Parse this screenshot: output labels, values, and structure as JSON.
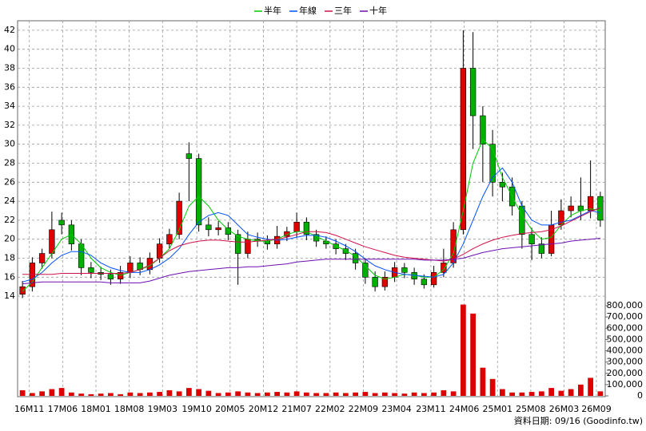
{
  "chart_data": {
    "type": "candlestick",
    "legend": "top",
    "grid": true,
    "source": "資料日期: 09/16  (Goodinfo.tw)",
    "x": [
      0.5,
      1.5,
      2.5,
      3.5,
      4.5,
      5.5,
      6.5,
      7.5,
      8.5,
      9.5,
      10.5,
      11.5,
      12.5,
      13.5,
      14.5,
      15.5,
      16.5,
      17.5,
      18.5,
      19.5,
      20.5,
      21.5,
      22.5,
      23.5,
      24.5,
      25.5,
      26.5,
      27.5,
      28.5,
      29.5,
      30.5,
      31.5,
      32.5,
      33.5,
      34.5,
      35.5,
      36.5,
      37.5,
      38.5,
      39.5,
      40.5,
      41.5,
      42.5,
      43.5,
      44.5,
      45.5,
      46.5,
      47.5,
      48.5,
      49.5,
      50.5,
      51.5,
      52.5,
      53.5,
      54.5,
      55.5,
      56.5,
      57.5,
      58.5,
      59.5
    ],
    "xlim": [
      0,
      60
    ],
    "xticks": [
      {
        "value": 1.2,
        "label": "16M11"
      },
      {
        "value": 4.6,
        "label": "17M06"
      },
      {
        "value": 8.0,
        "label": "18M01"
      },
      {
        "value": 11.4,
        "label": "18M08"
      },
      {
        "value": 14.8,
        "label": "19M03"
      },
      {
        "value": 18.3,
        "label": "19M10"
      },
      {
        "value": 21.7,
        "label": "20M05"
      },
      {
        "value": 25.1,
        "label": "20M12"
      },
      {
        "value": 28.5,
        "label": "21M07"
      },
      {
        "value": 31.9,
        "label": "22M02"
      },
      {
        "value": 35.3,
        "label": "22M09"
      },
      {
        "value": 38.7,
        "label": "23M04"
      },
      {
        "value": 42.2,
        "label": "23M11"
      },
      {
        "value": 45.6,
        "label": "24M06"
      },
      {
        "value": 49.0,
        "label": "25M01"
      },
      {
        "value": 52.4,
        "label": "25M08"
      },
      {
        "value": 55.8,
        "label": "26M03"
      },
      {
        "value": 59.1,
        "label": "26M09"
      }
    ],
    "ylim": [
      13,
      43
    ],
    "yticks": [
      14,
      16,
      18,
      20,
      22,
      24,
      26,
      28,
      30,
      32,
      34,
      36,
      38,
      40,
      42
    ],
    "up_color": "#e00000",
    "down_color": "#00b000",
    "open": [
      14.2,
      15.0,
      17.5,
      18.5,
      22.0,
      21.5,
      19.5,
      17.0,
      16.5,
      16.3,
      15.8,
      16.5,
      17.5,
      16.8,
      18.0,
      19.5,
      20.5,
      29.0,
      28.5,
      21.5,
      21.0,
      21.2,
      20.5,
      18.5,
      20.0,
      19.8,
      19.5,
      20.3,
      20.8,
      21.8,
      20.5,
      19.8,
      19.5,
      19.0,
      18.5,
      17.5,
      16.0,
      15.0,
      16.0,
      17.0,
      16.5,
      15.8,
      15.2,
      16.5,
      17.5,
      21.0,
      38.0,
      33.0,
      30.0,
      26.0,
      25.5,
      23.5,
      20.5,
      19.5,
      18.5,
      21.5,
      23.0,
      23.5,
      23.0,
      24.5
    ],
    "high": [
      15.6,
      18.1,
      19.0,
      22.9,
      22.8,
      22.0,
      20.0,
      17.6,
      17.1,
      16.8,
      17.2,
      18.2,
      18.1,
      18.6,
      20.1,
      21.1,
      24.9,
      30.2,
      29.0,
      22.3,
      21.9,
      21.8,
      21.0,
      20.8,
      20.7,
      20.4,
      21.4,
      21.3,
      22.8,
      22.3,
      21.0,
      20.3,
      20.0,
      19.5,
      19.0,
      18.0,
      16.6,
      16.6,
      17.6,
      17.5,
      17.0,
      16.3,
      17.2,
      19.0,
      21.8,
      42.0,
      41.8,
      34.0,
      31.5,
      27.0,
      26.5,
      24.0,
      21.2,
      20.2,
      23.0,
      24.2,
      24.5,
      26.5,
      28.3,
      25.0
    ],
    "low": [
      13.8,
      14.5,
      16.9,
      18.0,
      20.5,
      18.8,
      16.2,
      15.9,
      15.7,
      15.2,
      15.3,
      15.9,
      16.2,
      16.3,
      17.5,
      19.0,
      20.0,
      24.0,
      20.8,
      20.3,
      20.4,
      19.9,
      15.2,
      18.0,
      19.2,
      18.9,
      19.0,
      19.8,
      20.2,
      19.9,
      19.2,
      19.0,
      18.4,
      17.8,
      16.8,
      15.3,
      14.5,
      14.6,
      15.5,
      15.9,
      15.2,
      14.8,
      14.9,
      16.0,
      17.0,
      20.5,
      29.5,
      26.0,
      24.5,
      24.0,
      22.5,
      19.0,
      17.8,
      18.0,
      18.2,
      21.0,
      22.3,
      22.0,
      22.2,
      21.3
    ],
    "close": [
      15.0,
      17.5,
      18.5,
      21.0,
      21.5,
      19.5,
      17.0,
      16.5,
      16.3,
      15.8,
      16.5,
      17.5,
      16.8,
      18.0,
      19.5,
      20.5,
      24.0,
      28.5,
      21.5,
      21.0,
      21.2,
      20.5,
      18.5,
      20.0,
      19.8,
      19.5,
      20.3,
      20.8,
      21.8,
      20.5,
      19.8,
      19.5,
      19.0,
      18.5,
      17.5,
      16.0,
      15.0,
      16.0,
      17.0,
      16.5,
      15.8,
      15.2,
      16.5,
      17.5,
      21.0,
      38.0,
      33.0,
      30.0,
      26.0,
      25.5,
      23.5,
      20.5,
      19.5,
      18.5,
      21.5,
      23.0,
      23.5,
      23.0,
      24.5,
      22.0
    ],
    "series": [
      {
        "name": "半年",
        "color": "#00cc00",
        "values": [
          14.5,
          15.5,
          17.0,
          18.5,
          20.0,
          20.5,
          19.5,
          18.0,
          17.0,
          16.5,
          16.2,
          16.5,
          16.8,
          17.2,
          18.0,
          19.0,
          21.0,
          23.5,
          24.5,
          23.5,
          22.0,
          21.0,
          20.3,
          20.0,
          19.8,
          19.8,
          20.0,
          20.5,
          20.8,
          20.8,
          20.3,
          19.8,
          19.3,
          18.8,
          18.2,
          17.2,
          16.2,
          15.8,
          16.0,
          16.3,
          16.2,
          16.0,
          16.0,
          16.8,
          18.5,
          23.0,
          28.0,
          30.5,
          29.5,
          26.5,
          24.5,
          22.5,
          21.0,
          20.0,
          20.2,
          21.5,
          22.5,
          23.0,
          23.2,
          23.0
        ]
      },
      {
        "name": "年線",
        "color": "#0050ff",
        "values": [
          15.5,
          15.8,
          16.5,
          17.5,
          18.3,
          18.7,
          18.7,
          18.3,
          17.5,
          17.0,
          16.7,
          16.5,
          16.5,
          16.8,
          17.3,
          18.0,
          19.0,
          20.5,
          21.8,
          22.5,
          22.8,
          22.5,
          21.5,
          20.5,
          20.2,
          20.0,
          19.9,
          20.0,
          20.2,
          20.4,
          20.4,
          20.2,
          19.8,
          19.3,
          18.7,
          17.9,
          17.2,
          16.8,
          16.5,
          16.3,
          16.2,
          16.1,
          16.0,
          16.3,
          17.5,
          19.5,
          22.0,
          24.5,
          26.5,
          27.5,
          26.0,
          23.5,
          22.0,
          21.5,
          21.5,
          21.8,
          22.0,
          22.5,
          23.0,
          22.8
        ]
      },
      {
        "name": "三年",
        "color": "#d0104a",
        "values": [
          16.3,
          16.3,
          16.3,
          16.3,
          16.4,
          16.4,
          16.4,
          16.4,
          16.4,
          16.4,
          16.4,
          16.5,
          16.8,
          17.3,
          18.0,
          18.8,
          19.3,
          19.6,
          19.8,
          19.9,
          19.9,
          19.8,
          19.7,
          19.7,
          19.8,
          19.9,
          20.0,
          20.2,
          20.5,
          20.8,
          20.8,
          20.7,
          20.4,
          20.0,
          19.6,
          19.2,
          18.9,
          18.6,
          18.3,
          18.1,
          18.0,
          17.9,
          17.8,
          17.7,
          17.9,
          18.4,
          19.0,
          19.5,
          19.9,
          20.2,
          20.4,
          20.6,
          20.7,
          20.8,
          21.0,
          21.4,
          21.9,
          22.4,
          22.9,
          23.3
        ]
      },
      {
        "name": "十年",
        "color": "#6a0fb0",
        "values": [
          15.3,
          15.4,
          15.5,
          15.5,
          15.5,
          15.5,
          15.5,
          15.5,
          15.5,
          15.4,
          15.4,
          15.4,
          15.4,
          15.6,
          15.9,
          16.2,
          16.4,
          16.6,
          16.7,
          16.8,
          16.9,
          17.0,
          17.0,
          17.1,
          17.1,
          17.2,
          17.3,
          17.4,
          17.6,
          17.7,
          17.8,
          17.9,
          17.9,
          17.9,
          17.9,
          17.9,
          17.9,
          17.9,
          17.9,
          17.9,
          17.9,
          17.8,
          17.8,
          17.8,
          17.9,
          18.0,
          18.3,
          18.6,
          18.8,
          19.0,
          19.1,
          19.2,
          19.3,
          19.4,
          19.5,
          19.6,
          19.8,
          19.9,
          20.0,
          20.1
        ]
      }
    ],
    "volume": [
      50000,
      25000,
      40000,
      60000,
      70000,
      30000,
      20000,
      15000,
      20000,
      25000,
      15000,
      30000,
      25000,
      30000,
      35000,
      50000,
      40000,
      70000,
      60000,
      45000,
      25000,
      30000,
      40000,
      30000,
      25000,
      30000,
      35000,
      30000,
      40000,
      30000,
      25000,
      25000,
      30000,
      25000,
      30000,
      35000,
      25000,
      30000,
      25000,
      20000,
      30000,
      25000,
      30000,
      50000,
      40000,
      810000,
      730000,
      250000,
      150000,
      60000,
      30000,
      30000,
      35000,
      40000,
      70000,
      45000,
      60000,
      100000,
      160000,
      40000
    ],
    "volume_color": "#dd0000",
    "y2lim": [
      0,
      800000
    ],
    "y2ticks": [
      0,
      {
        "value": 100000,
        "label": "100,000"
      },
      {
        "value": 200000,
        "label": "200,000"
      },
      {
        "value": 300000,
        "label": "300,000"
      },
      {
        "value": 400000,
        "label": "400,000"
      },
      {
        "value": 500000,
        "label": "500,000"
      },
      {
        "value": 600000,
        "label": "600,000"
      },
      {
        "value": 700000,
        "label": "700,000"
      },
      {
        "value": 800000,
        "label": "800,000"
      }
    ]
  }
}
